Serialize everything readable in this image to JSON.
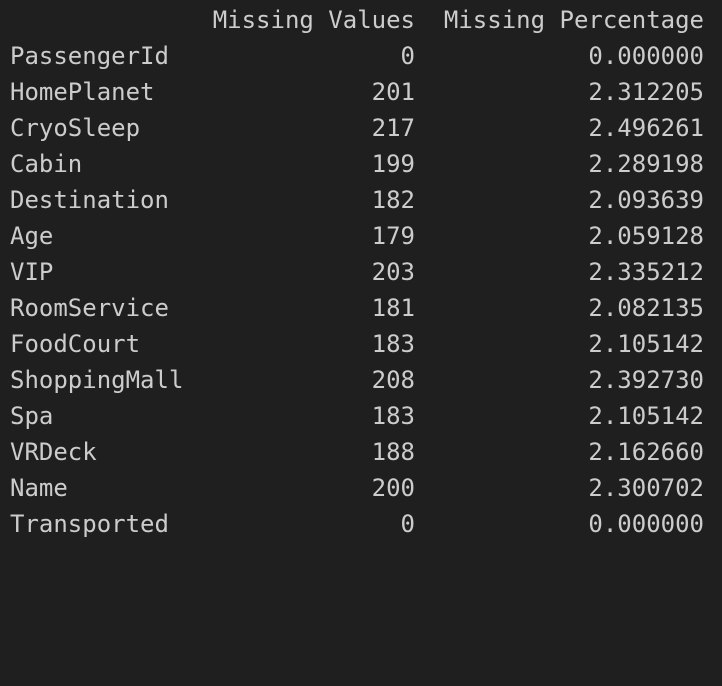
{
  "table": {
    "headers": {
      "missing_values": "Missing Values",
      "missing_percentage": "Missing Percentage"
    },
    "rows": [
      {
        "name": "PassengerId",
        "missing_values": "0",
        "missing_percentage": "0.000000"
      },
      {
        "name": "HomePlanet",
        "missing_values": "201",
        "missing_percentage": "2.312205"
      },
      {
        "name": "CryoSleep",
        "missing_values": "217",
        "missing_percentage": "2.496261"
      },
      {
        "name": "Cabin",
        "missing_values": "199",
        "missing_percentage": "2.289198"
      },
      {
        "name": "Destination",
        "missing_values": "182",
        "missing_percentage": "2.093639"
      },
      {
        "name": "Age",
        "missing_values": "179",
        "missing_percentage": "2.059128"
      },
      {
        "name": "VIP",
        "missing_values": "203",
        "missing_percentage": "2.335212"
      },
      {
        "name": "RoomService",
        "missing_values": "181",
        "missing_percentage": "2.082135"
      },
      {
        "name": "FoodCourt",
        "missing_values": "183",
        "missing_percentage": "2.105142"
      },
      {
        "name": "ShoppingMall",
        "missing_values": "208",
        "missing_percentage": "2.392730"
      },
      {
        "name": "Spa",
        "missing_values": "183",
        "missing_percentage": "2.105142"
      },
      {
        "name": "VRDeck",
        "missing_values": "188",
        "missing_percentage": "2.162660"
      },
      {
        "name": "Name",
        "missing_values": "200",
        "missing_percentage": "2.300702"
      },
      {
        "name": "Transported",
        "missing_values": "0",
        "missing_percentage": "0.000000"
      }
    ]
  }
}
